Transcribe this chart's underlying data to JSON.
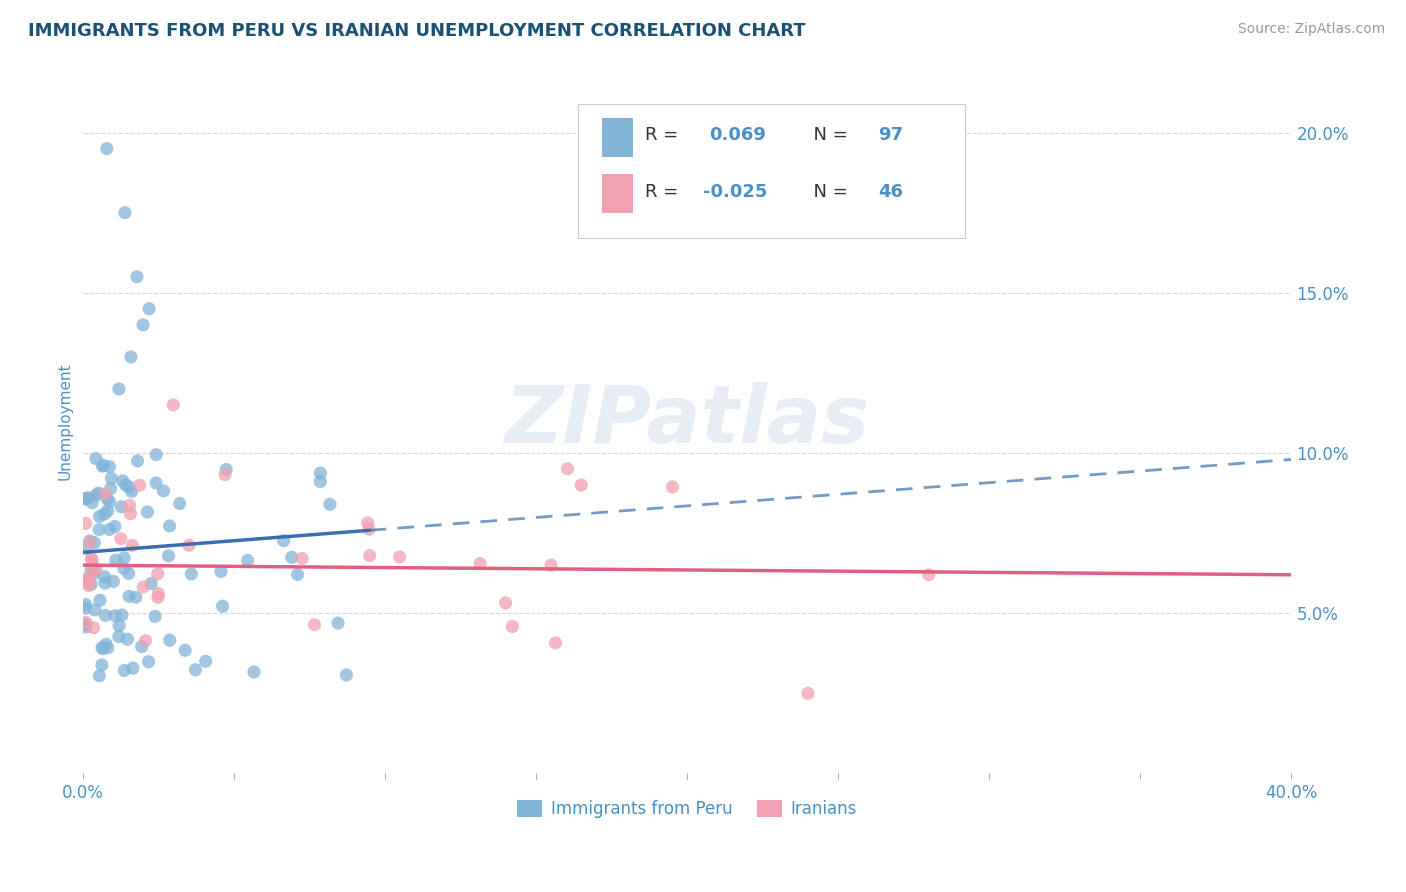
{
  "title": "IMMIGRANTS FROM PERU VS IRANIAN UNEMPLOYMENT CORRELATION CHART",
  "source": "Source: ZipAtlas.com",
  "watermark": "ZIPatlas",
  "ylabel": "Unemployment",
  "ytick_labels": [
    "5.0%",
    "10.0%",
    "15.0%",
    "20.0%"
  ],
  "ytick_values": [
    0.05,
    0.1,
    0.15,
    0.2
  ],
  "xlim": [
    0.0,
    0.4
  ],
  "ylim": [
    0.0,
    0.22
  ],
  "legend_r1": "R =  0.069",
  "legend_n1": "N = 97",
  "legend_r2": "R = -0.025",
  "legend_n2": "N = 46",
  "legend_label1": "Immigrants from Peru",
  "legend_label2": "Iranians",
  "peru_color": "#82b4d8",
  "iran_color": "#f0a0b0",
  "peru_line_color": "#3a6faf",
  "iran_line_color": "#e06080",
  "background_color": "#ffffff",
  "grid_color": "#c8c8c8",
  "title_color": "#1a5276",
  "axis_label_color": "#4a90c8",
  "legend_text_color": "#333333",
  "legend_value_color": "#4a90c8"
}
